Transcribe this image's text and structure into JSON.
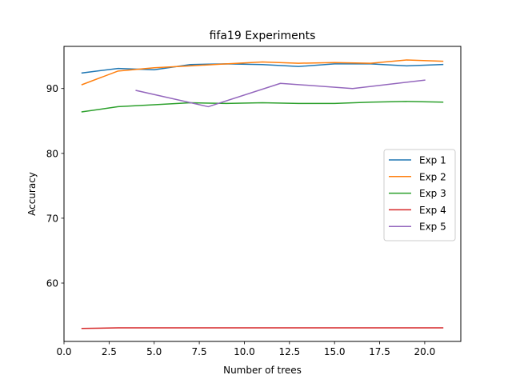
{
  "chart_data": {
    "type": "line",
    "title": "fifa19 Experiments",
    "xlabel": "Number of trees",
    "ylabel": "Accuracy",
    "xlim": [
      0.0,
      22.0
    ],
    "ylim": [
      51.0,
      96.5
    ],
    "grid": false,
    "legend_position": "center-right",
    "x_ticks": [
      0.0,
      2.5,
      5.0,
      7.5,
      10.0,
      12.5,
      15.0,
      17.5,
      20.0
    ],
    "x_tick_labels": [
      "0.0",
      "2.5",
      "5.0",
      "7.5",
      "10.0",
      "12.5",
      "15.0",
      "17.5",
      "20.0"
    ],
    "y_ticks": [
      60,
      70,
      80,
      90
    ],
    "y_tick_labels": [
      "60",
      "70",
      "80",
      "90"
    ],
    "series": [
      {
        "name": "Exp 1",
        "color": "#1f77b4",
        "x": [
          1,
          3,
          5,
          7,
          9,
          11,
          13,
          15,
          17,
          19,
          21
        ],
        "y": [
          92.4,
          93.1,
          92.9,
          93.7,
          93.8,
          93.7,
          93.4,
          93.8,
          93.8,
          93.5,
          93.7
        ]
      },
      {
        "name": "Exp 2",
        "color": "#ff7f0e",
        "x": [
          1,
          3,
          5,
          7,
          9,
          11,
          13,
          15,
          17,
          19,
          21
        ],
        "y": [
          90.6,
          92.7,
          93.2,
          93.5,
          93.8,
          94.1,
          93.9,
          94.0,
          93.9,
          94.4,
          94.2
        ]
      },
      {
        "name": "Exp 3",
        "color": "#2ca02c",
        "x": [
          1,
          3,
          5,
          7,
          9,
          11,
          13,
          15,
          17,
          19,
          21
        ],
        "y": [
          86.4,
          87.2,
          87.5,
          87.8,
          87.7,
          87.8,
          87.7,
          87.7,
          87.9,
          88.0,
          87.9
        ]
      },
      {
        "name": "Exp 4",
        "color": "#d62728",
        "x": [
          1,
          3,
          5,
          7,
          9,
          11,
          13,
          15,
          17,
          19,
          21
        ],
        "y": [
          53.0,
          53.1,
          53.1,
          53.1,
          53.1,
          53.1,
          53.1,
          53.1,
          53.1,
          53.1,
          53.1
        ]
      },
      {
        "name": "Exp 5",
        "color": "#9467bd",
        "x": [
          4,
          8,
          12,
          16,
          20
        ],
        "y": [
          89.7,
          87.2,
          90.8,
          90.0,
          91.3
        ]
      }
    ]
  }
}
